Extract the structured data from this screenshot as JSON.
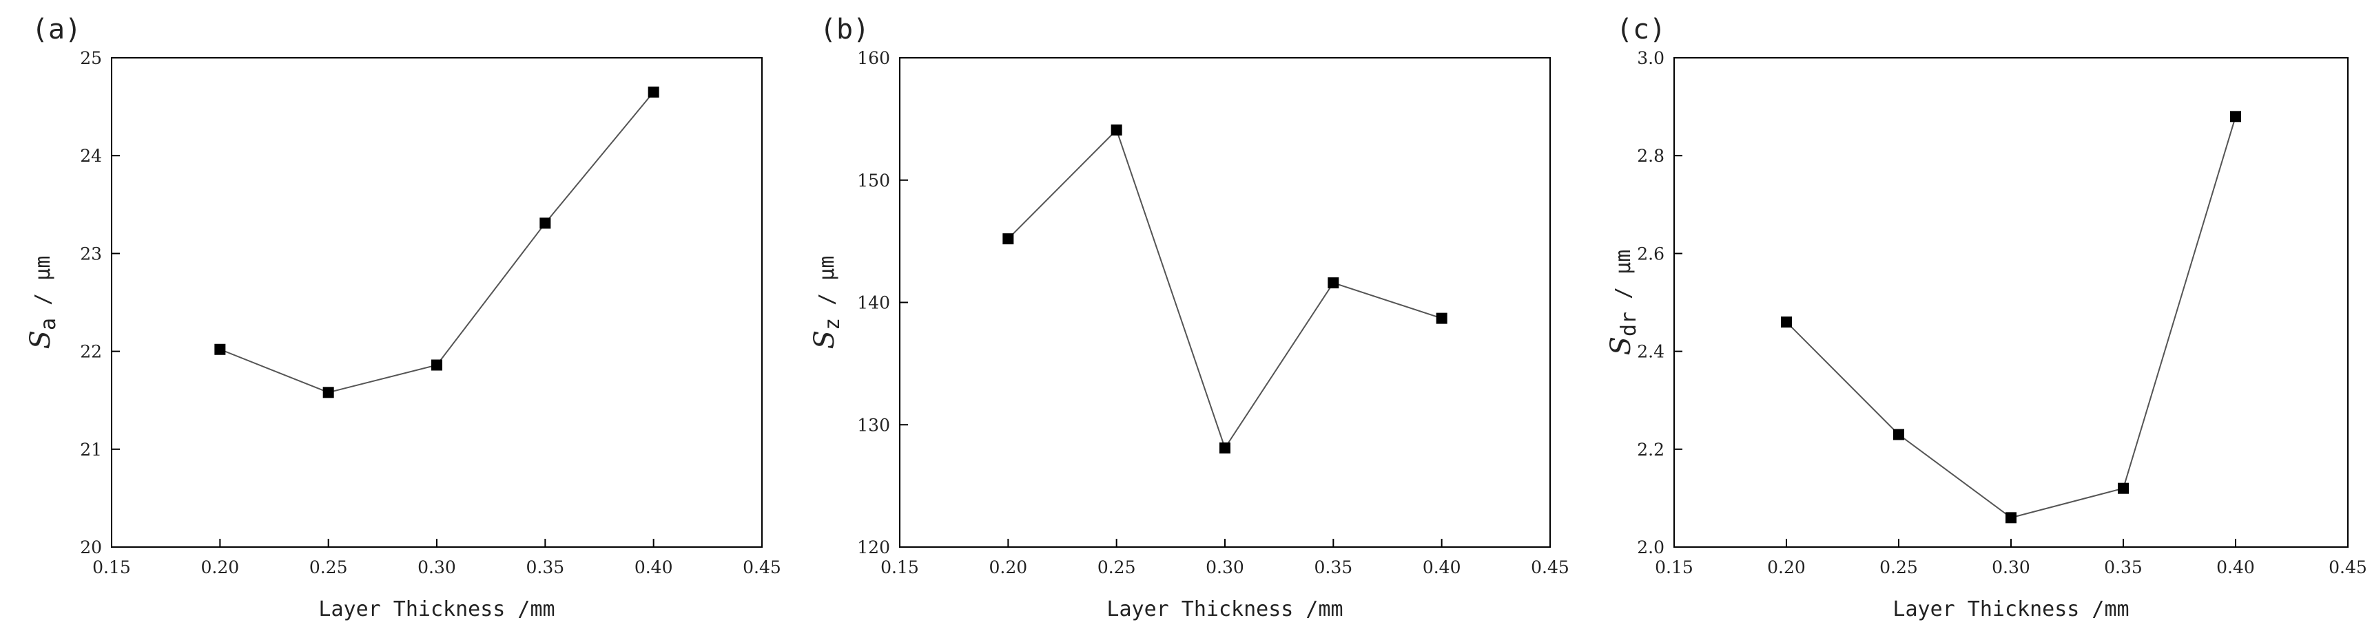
{
  "chart_data": [
    {
      "type": "line",
      "panel_label": "(a)",
      "xlabel": "Layer Thickness /mm",
      "ylabel": {
        "symbol": "S",
        "subscript": "a",
        "unit": " / μm"
      },
      "xlim": [
        0.15,
        0.45
      ],
      "ylim": [
        20,
        25
      ],
      "xticks": [
        "0.15",
        "0.20",
        "0.25",
        "0.30",
        "0.35",
        "0.40",
        "0.45"
      ],
      "yticks": [
        "20",
        "21",
        "22",
        "23",
        "24",
        "25"
      ],
      "grid": false,
      "x": [
        0.2,
        0.25,
        0.3,
        0.35,
        0.4
      ],
      "series": [
        {
          "values": [
            22.02,
            21.58,
            21.86,
            23.31,
            24.65
          ]
        }
      ]
    },
    {
      "type": "line",
      "panel_label": "(b)",
      "xlabel": "Layer Thickness /mm",
      "ylabel": {
        "symbol": "S",
        "subscript": "z",
        "unit": " / μm"
      },
      "xlim": [
        0.15,
        0.45
      ],
      "ylim": [
        120,
        160
      ],
      "xticks": [
        "0.15",
        "0.20",
        "0.25",
        "0.30",
        "0.35",
        "0.40",
        "0.45"
      ],
      "yticks": [
        "120",
        "130",
        "140",
        "150",
        "160"
      ],
      "grid": false,
      "x": [
        0.2,
        0.25,
        0.3,
        0.35,
        0.4
      ],
      "series": [
        {
          "values": [
            145.2,
            154.1,
            128.1,
            141.6,
            138.7
          ]
        }
      ]
    },
    {
      "type": "line",
      "panel_label": "(c)",
      "xlabel": "Layer Thickness /mm",
      "ylabel": {
        "symbol": "S",
        "subscript": "dr",
        "unit": " / μm"
      },
      "xlim": [
        0.15,
        0.45
      ],
      "ylim": [
        2.0,
        3.0
      ],
      "xticks": [
        "0.15",
        "0.20",
        "0.25",
        "0.30",
        "0.35",
        "0.40",
        "0.45"
      ],
      "yticks": [
        "2.0",
        "2.2",
        "2.4",
        "2.6",
        "2.8",
        "3.0"
      ],
      "grid": false,
      "x": [
        0.2,
        0.25,
        0.3,
        0.35,
        0.4
      ],
      "series": [
        {
          "values": [
            2.46,
            2.23,
            2.06,
            2.12,
            2.88
          ]
        }
      ]
    }
  ]
}
